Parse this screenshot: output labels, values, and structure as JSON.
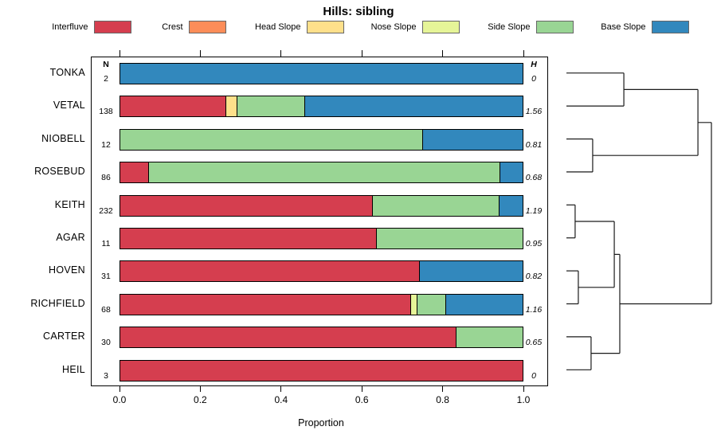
{
  "title": "Hills: sibling",
  "legend": {
    "items": [
      {
        "label": "Interfluve",
        "color": "#d53e4f"
      },
      {
        "label": "Crest",
        "color": "#fc8d59"
      },
      {
        "label": "Head Slope",
        "color": "#fee08b"
      },
      {
        "label": "Nose Slope",
        "color": "#e6f598"
      },
      {
        "label": "Side Slope",
        "color": "#99d594"
      },
      {
        "label": "Base Slope",
        "color": "#3288bd"
      }
    ]
  },
  "columns": {
    "n_header": "N",
    "h_header": "H"
  },
  "chart_data": {
    "type": "bar",
    "subtype": "horizontal-stacked-proportion",
    "title": "Hills: sibling",
    "xlabel": "Proportion",
    "xlim": [
      0,
      1
    ],
    "x_ticks": [
      "0.0",
      "0.2",
      "0.4",
      "0.6",
      "0.8",
      "1.0"
    ],
    "categories": [
      "Interfluve",
      "Crest",
      "Head Slope",
      "Nose Slope",
      "Side Slope",
      "Base Slope"
    ],
    "palette": {
      "Interfluve": "#d53e4f",
      "Crest": "#fc8d59",
      "Head Slope": "#fee08b",
      "Nose Slope": "#e6f598",
      "Side Slope": "#99d594",
      "Base Slope": "#3288bd"
    },
    "rows": [
      {
        "label": "TONKA",
        "n": 2,
        "h": "0",
        "segments": [
          {
            "category": "Base Slope",
            "value": 1.0
          }
        ]
      },
      {
        "label": "VETAL",
        "n": 138,
        "h": "1.56",
        "segments": [
          {
            "category": "Interfluve",
            "value": 0.261
          },
          {
            "category": "Head Slope",
            "value": 0.029
          },
          {
            "category": "Side Slope",
            "value": 0.167
          },
          {
            "category": "Base Slope",
            "value": 0.543
          }
        ]
      },
      {
        "label": "NIOBELL",
        "n": 12,
        "h": "0.81",
        "segments": [
          {
            "category": "Side Slope",
            "value": 0.75
          },
          {
            "category": "Base Slope",
            "value": 0.25
          }
        ]
      },
      {
        "label": "ROSEBUD",
        "n": 86,
        "h": "0.68",
        "segments": [
          {
            "category": "Interfluve",
            "value": 0.07
          },
          {
            "category": "Side Slope",
            "value": 0.872
          },
          {
            "category": "Base Slope",
            "value": 0.058
          }
        ]
      },
      {
        "label": "KEITH",
        "n": 232,
        "h": "1.19",
        "segments": [
          {
            "category": "Interfluve",
            "value": 0.625
          },
          {
            "category": "Side Slope",
            "value": 0.315
          },
          {
            "category": "Base Slope",
            "value": 0.06
          }
        ]
      },
      {
        "label": "AGAR",
        "n": 11,
        "h": "0.95",
        "segments": [
          {
            "category": "Interfluve",
            "value": 0.636
          },
          {
            "category": "Side Slope",
            "value": 0.364
          }
        ]
      },
      {
        "label": "HOVEN",
        "n": 31,
        "h": "0.82",
        "segments": [
          {
            "category": "Interfluve",
            "value": 0.742
          },
          {
            "category": "Base Slope",
            "value": 0.258
          }
        ]
      },
      {
        "label": "RICHFIELD",
        "n": 68,
        "h": "1.16",
        "segments": [
          {
            "category": "Interfluve",
            "value": 0.721
          },
          {
            "category": "Nose Slope",
            "value": 0.015
          },
          {
            "category": "Side Slope",
            "value": 0.072
          },
          {
            "category": "Base Slope",
            "value": 0.192
          }
        ]
      },
      {
        "label": "CARTER",
        "n": 30,
        "h": "0.65",
        "segments": [
          {
            "category": "Interfluve",
            "value": 0.833
          },
          {
            "category": "Side Slope",
            "value": 0.167
          }
        ]
      },
      {
        "label": "HEIL",
        "n": 3,
        "h": "0",
        "segments": [
          {
            "category": "Interfluve",
            "value": 1.0
          }
        ]
      }
    ],
    "dendrogram": {
      "orientation": "right",
      "leaf_order": [
        "TONKA",
        "VETAL",
        "NIOBELL",
        "ROSEBUD",
        "KEITH",
        "AGAR",
        "HOVEN",
        "RICHFIELD",
        "CARTER",
        "HEIL"
      ],
      "merges": [
        {
          "id": "M1",
          "a": "TONKA",
          "b": "VETAL",
          "height": 0.396
        },
        {
          "id": "M2",
          "a": "NIOBELL",
          "b": "ROSEBUD",
          "height": 0.181
        },
        {
          "id": "M3",
          "a": "M1",
          "b": "M2",
          "height": 0.907
        },
        {
          "id": "M4",
          "a": "KEITH",
          "b": "AGAR",
          "height": 0.06
        },
        {
          "id": "M5",
          "a": "HOVEN",
          "b": "RICHFIELD",
          "height": 0.082
        },
        {
          "id": "M6",
          "a": "M4",
          "b": "M5",
          "height": 0.33
        },
        {
          "id": "M7",
          "a": "CARTER",
          "b": "HEIL",
          "height": 0.17
        },
        {
          "id": "M8",
          "a": "M6",
          "b": "M7",
          "height": 0.368
        },
        {
          "id": "ROOT",
          "a": "M3",
          "b": "M8",
          "height": 1.0
        }
      ]
    }
  }
}
